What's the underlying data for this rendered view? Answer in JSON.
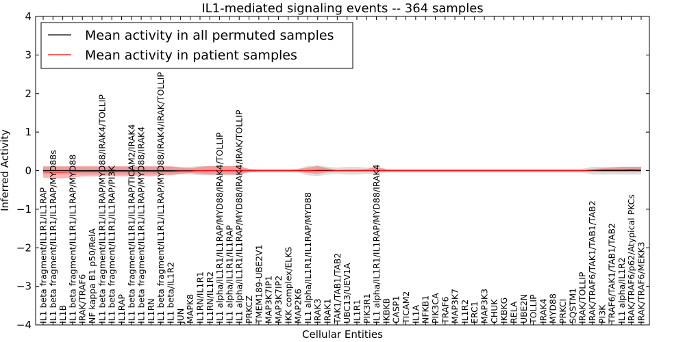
{
  "chart_data": {
    "type": "line",
    "title": "IL1-mediated signaling events -- 364 samples",
    "xlabel": "Cellular Entities",
    "ylabel": "Inferred Activity",
    "ylim": [
      -4,
      4
    ],
    "yticks": [
      "4",
      "3",
      "2",
      "1",
      "0",
      "−1",
      "−2",
      "−3",
      "−4"
    ],
    "legend": {
      "position": "top-left",
      "entries": [
        {
          "label": "Mean activity in all permuted samples",
          "color": "#000000"
        },
        {
          "label": "Mean activity in patient samples",
          "color": "#ff0000"
        }
      ]
    },
    "categories": [
      "IL1 beta fragment/IL1R1/IL1RAP",
      "IL1 beta fragment/IL1R1/IL1RAP/MYD88s",
      "IL1B",
      "IL1 beta fragment/IL1R1/IL1RAP/MYD88",
      "IRAK/TRAF6",
      "NF kappa B1 p50/RelA",
      "IL1 beta fragment/IL1R1/IL1RAP/MYD88/IRAK4/TOLLIP",
      "IL1 beta fragment/IL1R1/IL1RAP/PI3K",
      "IL1RAP",
      "IL1 beta fragment/IL1R1/IL1RAP/TICAM2/IRAK4",
      "IL1 beta fragment/IL1R1/IL1RAP/MYD88/IRAK4",
      "IL1RN",
      "IL1 beta fragment/IL1R1/IL1RAP/MYD88/IRAK4/IRAK/TOLLIP",
      "IL1 beta/IL1R2",
      "JUN",
      "MAPK8",
      "IL1RN/IL1R1",
      "IL1RN/IL1R2",
      "IL1 alpha/IL1R1/IL1RAP/MYD88/IRAK4/TOLLIP",
      "IL1 alpha/IL1R1/IL1RAP",
      "IL1 alpha/IL1R1/IL1RAP/MYD88/IRAK4/IRAK/TOLLIP",
      "PRKCZ",
      "TMEM189-UBE2V1",
      "MAP3K7IP1",
      "MAP3K7IP2",
      "IKK complex/ELKS",
      "MAP2K6",
      "IL1 alpha/IL1R1/IL1RAP/MYD88",
      "IRAK3",
      "IRAK1",
      "TAK1/TAB1/TAB2",
      "UBC13/UEV1A",
      "IL1R1",
      "PIK3R1",
      "IL1 alpha/IL1R1/IL1RAP/MYD88/IRAK4",
      "IKBKB",
      "CASP1",
      "TICAM2",
      "IL1A",
      "NFKB1",
      "PIK3CA",
      "TRAF6",
      "MAP3K7",
      "IL1R2",
      "ERC1",
      "MAP3K3",
      "CHUK",
      "IKBKG",
      "RELA",
      "UBE2N",
      "TOLLIP",
      "IRAK4",
      "MYD88",
      "PRKCI",
      "SQSTM1",
      "IRAK/TOLLIP",
      "IRAK/TRAF6/TAK1/TAB1/TAB2",
      "PI3K",
      "TRAF6/TAK1/TAB1/TAB2",
      "IL1 alpha/IL1R2",
      "IRAK/TRAF6/p62/Atypical PKCs",
      "IRAK/TRAF6/MEKK3"
    ],
    "series": [
      {
        "name": "Mean activity in all permuted samples",
        "color": "#000000",
        "values": [
          0,
          0,
          0,
          0,
          0,
          0,
          0,
          0,
          0,
          0,
          0,
          0,
          0,
          0,
          0,
          0,
          0,
          0,
          0,
          0,
          0,
          0,
          0,
          0,
          0,
          0,
          0,
          0,
          0,
          0,
          0,
          0,
          0,
          0,
          0,
          0,
          0,
          0,
          0,
          0,
          0,
          0,
          0,
          0,
          0,
          0,
          0,
          0,
          0,
          0,
          0,
          0,
          0,
          0,
          0,
          0,
          0,
          0,
          0,
          0,
          0,
          0
        ],
        "band_lower": [
          -0.1,
          -0.1,
          -0.1,
          -0.1,
          -0.1,
          -0.1,
          -0.1,
          -0.1,
          -0.1,
          -0.1,
          -0.1,
          -0.1,
          -0.1,
          -0.1,
          -0.1,
          -0.1,
          -0.12,
          -0.12,
          -0.12,
          -0.12,
          -0.12,
          -0.05,
          -0.05,
          -0.05,
          -0.05,
          -0.05,
          -0.05,
          -0.12,
          -0.14,
          -0.1,
          -0.08,
          -0.1,
          -0.1,
          -0.08,
          -0.1,
          -0.05,
          -0.05,
          -0.05,
          -0.05,
          -0.05,
          -0.05,
          -0.05,
          -0.05,
          -0.05,
          -0.05,
          -0.05,
          -0.05,
          -0.05,
          -0.05,
          -0.05,
          -0.05,
          -0.05,
          -0.05,
          -0.05,
          -0.05,
          -0.05,
          -0.1,
          -0.1,
          -0.1,
          -0.1,
          -0.1,
          -0.1
        ],
        "band_upper": [
          0.1,
          0.1,
          0.1,
          0.1,
          0.1,
          0.1,
          0.1,
          0.1,
          0.1,
          0.1,
          0.1,
          0.1,
          0.1,
          0.1,
          0.1,
          0.1,
          0.12,
          0.12,
          0.12,
          0.12,
          0.12,
          0.05,
          0.05,
          0.05,
          0.05,
          0.05,
          0.05,
          0.12,
          0.14,
          0.1,
          0.08,
          0.1,
          0.1,
          0.08,
          0.1,
          0.05,
          0.05,
          0.05,
          0.05,
          0.05,
          0.05,
          0.05,
          0.05,
          0.05,
          0.05,
          0.05,
          0.05,
          0.05,
          0.05,
          0.05,
          0.05,
          0.05,
          0.05,
          0.05,
          0.05,
          0.05,
          0.1,
          0.1,
          0.1,
          0.1,
          0.1,
          0.1
        ]
      },
      {
        "name": "Mean activity in patient samples",
        "color": "#ff0000",
        "values": [
          -0.03,
          -0.04,
          -0.04,
          -0.03,
          -0.02,
          -0.02,
          -0.02,
          -0.02,
          -0.02,
          -0.02,
          -0.02,
          -0.02,
          -0.02,
          -0.02,
          -0.01,
          -0.01,
          0,
          0,
          0,
          0,
          0,
          0,
          0,
          0,
          0,
          0,
          0,
          0,
          0.01,
          0.01,
          0,
          0,
          0,
          0,
          0,
          0,
          0,
          0,
          0,
          0,
          0,
          0,
          0,
          0,
          0,
          0,
          0,
          0,
          0,
          0,
          0,
          0,
          0,
          0,
          0,
          0,
          0.01,
          0.02,
          0.02,
          0.02,
          0.03,
          0.02
        ],
        "band_lower": [
          -0.18,
          -0.2,
          -0.2,
          -0.18,
          -0.15,
          -0.15,
          -0.14,
          -0.14,
          -0.15,
          -0.14,
          -0.14,
          -0.15,
          -0.12,
          -0.12,
          -0.08,
          -0.06,
          -0.08,
          -0.1,
          -0.1,
          -0.1,
          -0.1,
          -0.03,
          -0.02,
          -0.02,
          -0.02,
          -0.02,
          -0.02,
          -0.06,
          -0.08,
          -0.04,
          -0.02,
          -0.02,
          -0.02,
          -0.02,
          -0.02,
          -0.02,
          -0.02,
          -0.02,
          -0.02,
          -0.02,
          -0.02,
          -0.02,
          -0.02,
          -0.02,
          -0.02,
          -0.02,
          -0.02,
          -0.02,
          -0.02,
          -0.02,
          -0.02,
          -0.02,
          -0.02,
          -0.02,
          -0.02,
          -0.02,
          -0.02,
          -0.03,
          -0.03,
          -0.03,
          -0.03,
          -0.03
        ],
        "band_upper": [
          0.12,
          0.12,
          0.12,
          0.12,
          0.12,
          0.12,
          0.12,
          0.12,
          0.12,
          0.12,
          0.12,
          0.12,
          0.12,
          0.12,
          0.08,
          0.06,
          0.1,
          0.12,
          0.12,
          0.12,
          0.12,
          0.04,
          0.02,
          0.02,
          0.02,
          0.02,
          0.04,
          0.08,
          0.12,
          0.06,
          0.02,
          0.03,
          0.03,
          0.04,
          0.1,
          0.03,
          0.02,
          0.02,
          0.02,
          0.02,
          0.02,
          0.02,
          0.02,
          0.02,
          0.02,
          0.02,
          0.02,
          0.02,
          0.02,
          0.02,
          0.02,
          0.02,
          0.02,
          0.02,
          0.02,
          0.02,
          0.04,
          0.06,
          0.08,
          0.1,
          0.1,
          0.1
        ]
      }
    ]
  }
}
